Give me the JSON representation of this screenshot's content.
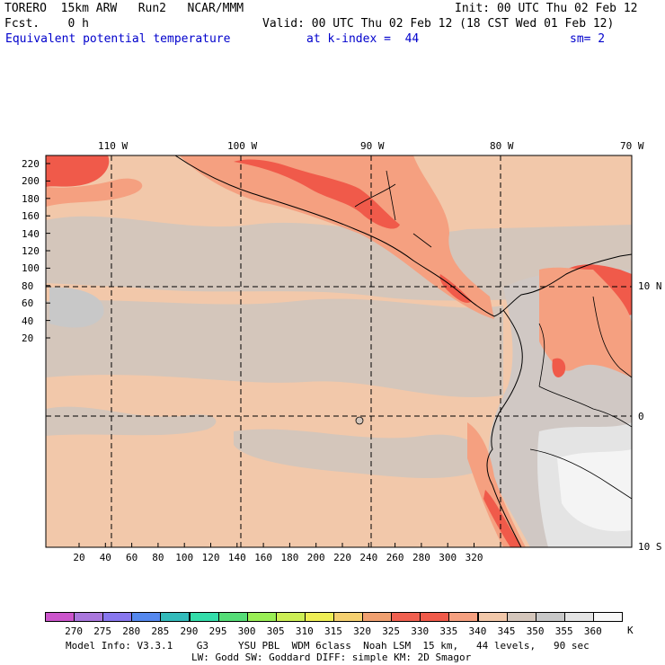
{
  "header": {
    "line1_left": "TORERO  15km ARW   Run2   NCAR/MMM",
    "line1_right": "Init: 00 UTC Thu 02 Feb 12",
    "line2_left": "Fcst.    0 h",
    "line2_right": "Valid: 00 UTC Thu 02 Feb 12 (18 CST Wed 01 Feb 12)",
    "line3_field": "Equivalent potential temperature",
    "line3_level": "at k-index =  44",
    "line3_sm": "sm= 2"
  },
  "top_lon_labels": [
    "110 W",
    "100 W",
    "90 W",
    "80 W",
    "70 W"
  ],
  "right_lat_labels": [
    "10 N",
    "0",
    "10 S"
  ],
  "left_y_ticks": [
    "220",
    "200",
    "180",
    "160",
    "140",
    "120",
    "100",
    "80",
    "60",
    "40",
    "20"
  ],
  "bottom_x_ticks": [
    "20",
    "40",
    "60",
    "80",
    "100",
    "120",
    "140",
    "160",
    "180",
    "200",
    "220",
    "240",
    "260",
    "280",
    "300",
    "320"
  ],
  "legend": {
    "unit": "K",
    "labels": [
      "270",
      "275",
      "280",
      "285",
      "290",
      "295",
      "300",
      "305",
      "310",
      "315",
      "320",
      "325",
      "330",
      "335",
      "340",
      "345",
      "350",
      "355",
      "360"
    ],
    "colors": [
      "#cc55cc",
      "#aa77dd",
      "#8877ee",
      "#5588ee",
      "#33bbbb",
      "#33ddaa",
      "#55dd77",
      "#99ee55",
      "#ccee55",
      "#eeee55",
      "#f5d070",
      "#f0a070",
      "#f06050",
      "#f05a4a",
      "#f5a080",
      "#f2c8aa",
      "#d4c6bb",
      "#c8c8c8",
      "#e4e4e4",
      "#f8f8f8"
    ]
  },
  "footer": {
    "line1": "Model Info: V3.3.1    G3     YSU PBL  WDM 6class  Noah LSM  15 km,   44 levels,   90 sec",
    "line2": "LW: Godd SW: Goddard DIFF: simple KM: 2D Smagor"
  }
}
